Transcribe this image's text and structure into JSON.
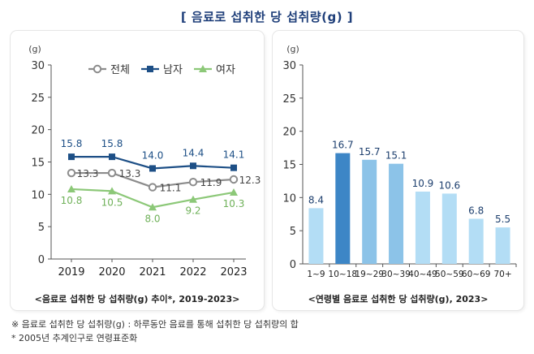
{
  "title": "[ 음료로 섭취한 당 섭취량(g) ]",
  "left_caption": "<음료로 섭취한 당 섭취량(g) 추이*, 2019-2023>",
  "right_caption": "<연령별 음료로 섭취한 당 섭취량(g), 2023>",
  "notes": [
    "※ 음료로 섭취한 당 섭취량(g) : 하루동안 음료를 통해 섭취한 당 섭취량의 합",
    "* 2005년 추계인구로 연령표준화"
  ],
  "colors": {
    "total": "#8c8c8c",
    "male": "#1d4f86",
    "female": "#8cc878",
    "bar_light": "#b3ddf5",
    "bar_mid": "#8cc3e8",
    "bar_dark": "#3d86c6"
  },
  "chart_data": [
    {
      "type": "line",
      "unit_label": "(g)",
      "categories": [
        "2019",
        "2020",
        "2021",
        "2022",
        "2023"
      ],
      "ylim": [
        0,
        30
      ],
      "yticks": [
        0,
        5,
        10,
        15,
        20,
        25,
        30
      ],
      "series": [
        {
          "name": "전체",
          "values": [
            13.3,
            13.3,
            11.1,
            11.9,
            12.3
          ],
          "labels": [
            "13.3",
            "13.3",
            "11.1",
            "11.9",
            "12.3"
          ]
        },
        {
          "name": "남자",
          "values": [
            15.8,
            15.8,
            14.0,
            14.4,
            14.1
          ],
          "labels": [
            "15.8",
            "15.8",
            "14.0",
            "14.4",
            "14.1"
          ]
        },
        {
          "name": "여자",
          "values": [
            10.8,
            10.5,
            8.0,
            9.2,
            10.3
          ],
          "labels": [
            "10.8",
            "10.5",
            "8.0",
            "9.2",
            "10.3"
          ]
        }
      ]
    },
    {
      "type": "bar",
      "unit_label": "(g)",
      "categories": [
        "1~9",
        "10~18",
        "19~29",
        "30~39",
        "40~49",
        "50~59",
        "60~69",
        "70+"
      ],
      "values": [
        8.4,
        16.7,
        15.7,
        15.1,
        10.9,
        10.6,
        6.8,
        5.5
      ],
      "labels": [
        "8.4",
        "16.7",
        "15.7",
        "15.1",
        "10.9",
        "10.6",
        "6.8",
        "5.5"
      ],
      "ylim": [
        0,
        30
      ],
      "yticks": [
        0,
        5,
        10,
        15,
        20,
        25,
        30
      ]
    }
  ]
}
